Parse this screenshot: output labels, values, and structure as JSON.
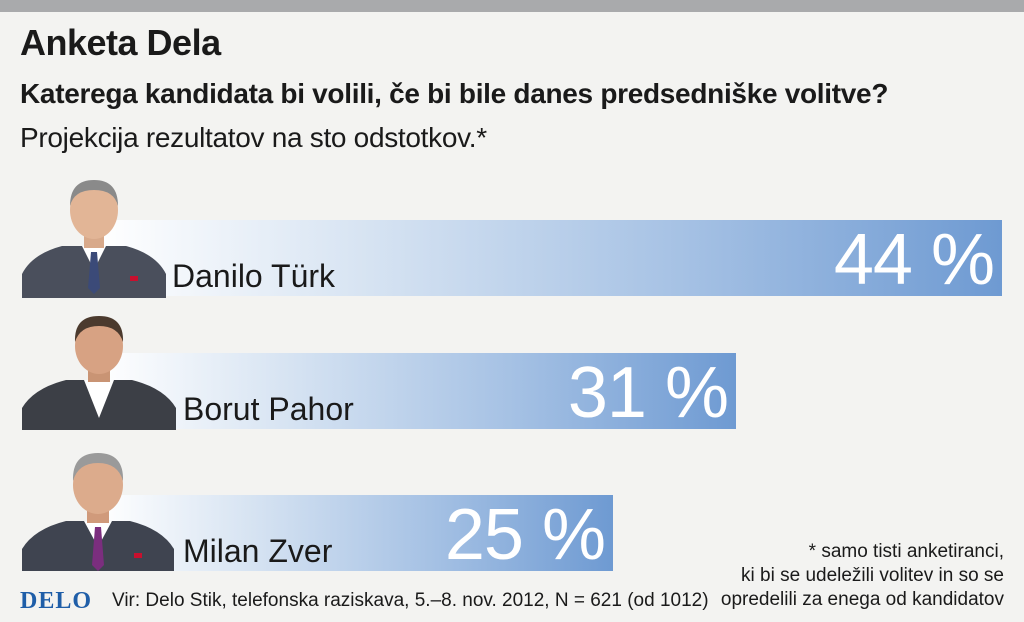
{
  "header": {
    "title": "Anketa Dela",
    "subtitle": "Katerega kandidata bi volili, če bi bile danes predsedniške volitve?",
    "note": "Projekcija rezultatov na sto odstotkov.*"
  },
  "chart_data": {
    "type": "bar",
    "title": "Anketa Dela",
    "subtitle": "Katerega kandidata bi volili, če bi bile danes predsedniške volitve?",
    "unit": "%",
    "categories": [
      "Danilo Türk",
      "Borut Pahor",
      "Milan Zver"
    ],
    "values": [
      44,
      31,
      25
    ],
    "value_labels": [
      "44 %",
      "31 %",
      "25 %"
    ],
    "xlim": [
      0,
      44
    ],
    "orientation": "horizontal",
    "grid": false
  },
  "footer": {
    "logo": "DELO",
    "source": "Vir: Delo Stik, telefonska raziskava, 5.–8. nov. 2012, N = 621 (od 1012)",
    "footnote_lines": [
      "* samo tisti anketiranci,",
      "ki bi se udeležili volitev in so se",
      "opredelili za enega od kandidatov"
    ]
  },
  "colors": {
    "bar_start": "#ffffff",
    "bar_end": "#6e9ad2",
    "logo": "#1f5ea8",
    "top_bar": "#a9aaac"
  }
}
